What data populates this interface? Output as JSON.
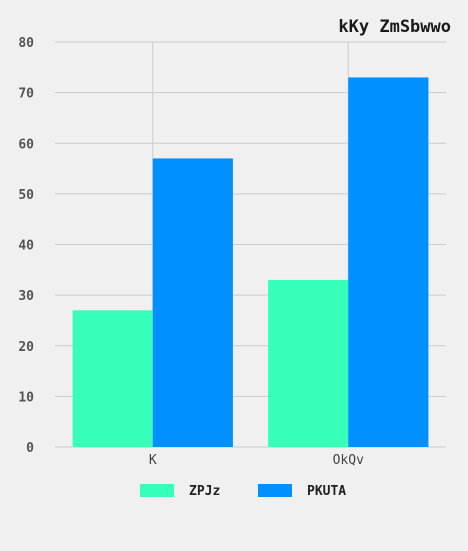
{
  "chart_data": {
    "type": "bar",
    "title": "kKy ZmSbwwo",
    "categories": [
      "K",
      "OkQv"
    ],
    "series": [
      {
        "name": "ZPJz",
        "values": [
          27,
          33
        ],
        "color": "#36ffb9"
      },
      {
        "name": "PKUTA",
        "values": [
          57,
          73
        ],
        "color": "#0090ff"
      }
    ],
    "ylim": [
      0,
      80
    ],
    "yticks": [
      0,
      10,
      20,
      30,
      40,
      50,
      60,
      70,
      80
    ],
    "xlabel": "",
    "ylabel": "",
    "grid": true,
    "legend_position": "bottom-center"
  },
  "colors": {
    "background": "#f0f0f0",
    "grid": "#cccccc"
  }
}
